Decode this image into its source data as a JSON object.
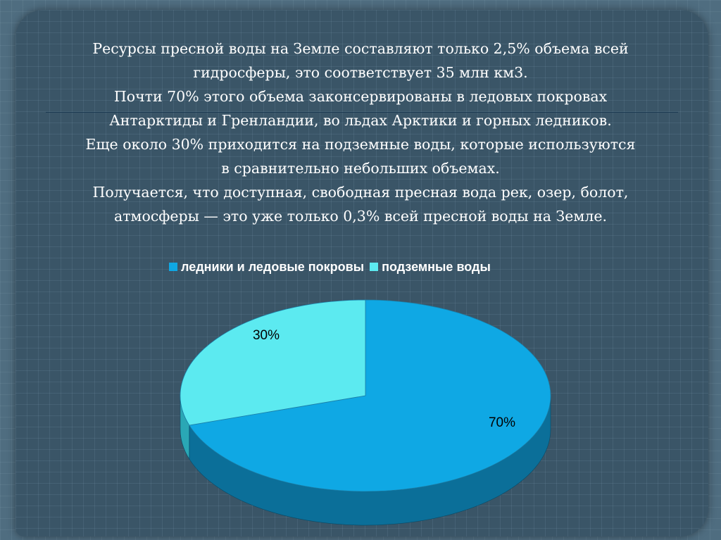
{
  "text": {
    "lines": [
      "Ресурсы пресной воды на Земле составляют только 2,5% объема всей",
      "гидросферы, это соответствует 35 млн км3.",
      "Почти 70% этого объема законсервированы в ледовых покровах",
      "Антарктиды и Гренландии, во льдах Арктики и горных ледников.",
      "Еще около 30% приходится на подземные воды, которые используются",
      "в сравнительно небольших объемах.",
      "Получается, что доступная, свободная пресная вода рек, озер, болот,",
      "атмосферы — это уже только 0,3% всей пресной воды на Земле."
    ]
  },
  "chart_data": {
    "type": "pie",
    "style": "3d",
    "legend_position": "top",
    "categories": [
      "ледники и ледовые покровы",
      "подземные воды"
    ],
    "values": [
      70,
      30
    ],
    "labels": [
      "70%",
      "30%"
    ],
    "colors": [
      "#0fa8e4",
      "#5ceaf0"
    ],
    "side_colors": [
      "#0b6f99",
      "#2aa7b5"
    ]
  }
}
